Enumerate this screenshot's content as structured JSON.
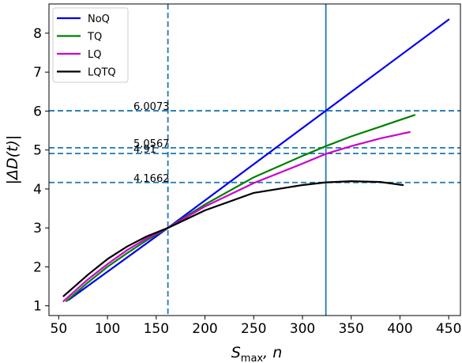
{
  "chart_data": {
    "type": "line",
    "xlabel_main": "S",
    "xlabel_sub": "max",
    "xlabel_suffix": ", n",
    "ylabel": "|ΔD(t)|",
    "xlim": [
      40,
      462
    ],
    "ylim": [
      0.75,
      8.75
    ],
    "xticks": [
      50,
      100,
      150,
      200,
      250,
      300,
      350,
      400,
      450
    ],
    "yticks": [
      1,
      2,
      3,
      4,
      5,
      6,
      7,
      8
    ],
    "legend_position": "top-left",
    "series": [
      {
        "name": "NoQ",
        "color": "#0000ee",
        "x": [
          60,
          162,
          450
        ],
        "y": [
          1.15,
          3.0,
          8.35
        ]
      },
      {
        "name": "TQ",
        "color": "#008000",
        "x": [
          58,
          80,
          100,
          120,
          140,
          162,
          200,
          250,
          300,
          324,
          350,
          380,
          415
        ],
        "y": [
          1.12,
          1.6,
          2.0,
          2.35,
          2.68,
          3.0,
          3.6,
          4.3,
          4.85,
          5.1,
          5.35,
          5.6,
          5.9
        ]
      },
      {
        "name": "LQ",
        "color": "#cc00cc",
        "x": [
          55,
          80,
          100,
          120,
          140,
          162,
          200,
          250,
          300,
          324,
          350,
          380,
          410
        ],
        "y": [
          1.12,
          1.68,
          2.07,
          2.43,
          2.73,
          3.0,
          3.55,
          4.15,
          4.65,
          4.9,
          5.1,
          5.3,
          5.46
        ]
      },
      {
        "name": "LQTQ",
        "color": "#000000",
        "x": [
          55,
          80,
          100,
          120,
          140,
          162,
          200,
          250,
          300,
          324,
          350,
          380,
          403
        ],
        "y": [
          1.25,
          1.8,
          2.2,
          2.52,
          2.78,
          3.0,
          3.45,
          3.9,
          4.1,
          4.17,
          4.2,
          4.18,
          4.1
        ]
      }
    ],
    "hlines": [
      {
        "y": 6.0073,
        "label": "6.0073"
      },
      {
        "y": 5.0567,
        "label": "5.0567"
      },
      {
        "y": 4.91,
        "label": "4.91"
      },
      {
        "y": 4.1662,
        "label": "4.1662"
      }
    ],
    "vlines": [
      {
        "x": 162,
        "style": "dashed"
      },
      {
        "x": 324,
        "style": "solid"
      }
    ]
  },
  "colors": {
    "refline": "#1f77b4"
  }
}
